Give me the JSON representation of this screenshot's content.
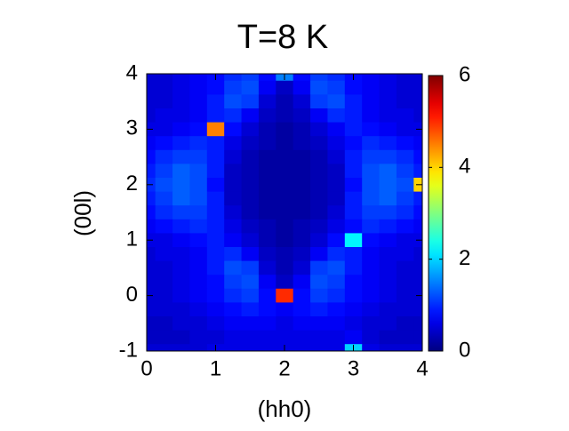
{
  "chart_data": {
    "type": "heatmap",
    "title": "T=8 K",
    "x_label": "(hh0)",
    "y_label": "(00l)",
    "xlim": [
      0,
      4
    ],
    "ylim": [
      -1,
      4
    ],
    "xticks": [
      0,
      1,
      2,
      3,
      4
    ],
    "yticks": [
      -1,
      0,
      1,
      2,
      3,
      4
    ],
    "colormap": "jet",
    "clim": [
      0,
      6
    ],
    "cticks": [
      0,
      2,
      4,
      6
    ],
    "x": [
      0,
      0.25,
      0.5,
      0.75,
      1,
      1.25,
      1.5,
      1.75,
      2,
      2.25,
      2.5,
      2.75,
      3,
      3.25,
      3.5,
      3.75,
      4
    ],
    "y": [
      4,
      3.75,
      3.5,
      3.25,
      3,
      2.75,
      2.5,
      2.25,
      2,
      1.75,
      1.5,
      1.25,
      1,
      0.75,
      0.5,
      0.25,
      0,
      -0.25,
      -0.5,
      -0.75,
      -1
    ],
    "z": [
      [
        0.5,
        0.5,
        0.6,
        0.7,
        0.8,
        1.0,
        1.1,
        0.8,
        1.5,
        0.8,
        1.1,
        1.0,
        0.8,
        0.7,
        0.6,
        0.5,
        0.5
      ],
      [
        0.5,
        0.5,
        0.6,
        0.7,
        0.8,
        1.1,
        1.2,
        0.7,
        0.4,
        0.7,
        1.2,
        1.1,
        0.8,
        0.7,
        0.6,
        0.5,
        0.5
      ],
      [
        0.5,
        0.5,
        0.6,
        0.7,
        0.9,
        1.2,
        1.1,
        0.5,
        0.3,
        0.5,
        1.1,
        1.2,
        0.9,
        0.7,
        0.6,
        0.5,
        0.5
      ],
      [
        0.5,
        0.6,
        0.6,
        0.7,
        0.9,
        1.0,
        0.7,
        0.4,
        0.3,
        0.4,
        0.7,
        1.0,
        0.9,
        0.7,
        0.6,
        0.6,
        0.5
      ],
      [
        0.6,
        0.6,
        0.7,
        0.8,
        4.5,
        0.8,
        0.5,
        0.3,
        0.2,
        0.3,
        0.5,
        0.7,
        0.9,
        0.8,
        0.7,
        0.6,
        0.6
      ],
      [
        0.7,
        0.8,
        0.9,
        1.0,
        0.9,
        0.6,
        0.4,
        0.3,
        0.2,
        0.3,
        0.4,
        0.6,
        0.8,
        1.0,
        0.9,
        0.8,
        0.7
      ],
      [
        0.8,
        1.0,
        1.1,
        1.1,
        0.9,
        0.5,
        0.3,
        0.2,
        0.2,
        0.2,
        0.3,
        0.5,
        0.9,
        1.1,
        1.1,
        1.0,
        0.8
      ],
      [
        0.9,
        1.1,
        1.3,
        1.2,
        0.9,
        0.4,
        0.3,
        0.2,
        0.2,
        0.2,
        0.3,
        0.4,
        0.9,
        1.2,
        1.3,
        1.1,
        0.9
      ],
      [
        1.0,
        1.2,
        1.3,
        1.2,
        0.8,
        0.4,
        0.3,
        0.2,
        0.2,
        0.2,
        0.3,
        0.4,
        0.8,
        1.2,
        1.3,
        1.2,
        4.0
      ],
      [
        0.9,
        1.1,
        1.3,
        1.2,
        0.9,
        0.4,
        0.3,
        0.2,
        0.2,
        0.2,
        0.3,
        0.4,
        0.9,
        1.2,
        1.3,
        1.1,
        0.9
      ],
      [
        0.8,
        1.0,
        1.1,
        1.1,
        0.9,
        0.5,
        0.3,
        0.2,
        0.2,
        0.2,
        0.3,
        0.5,
        0.9,
        1.1,
        1.1,
        1.0,
        0.8
      ],
      [
        0.7,
        0.8,
        0.9,
        1.0,
        0.9,
        0.6,
        0.4,
        0.3,
        0.2,
        0.3,
        0.4,
        0.6,
        0.8,
        1.0,
        0.9,
        0.8,
        0.7
      ],
      [
        0.6,
        0.6,
        0.7,
        0.8,
        0.9,
        0.7,
        0.5,
        0.3,
        0.2,
        0.3,
        0.5,
        0.8,
        2.2,
        0.8,
        0.7,
        0.6,
        0.6
      ],
      [
        0.5,
        0.6,
        0.6,
        0.7,
        0.9,
        1.0,
        0.7,
        0.4,
        0.3,
        0.4,
        0.7,
        1.0,
        0.9,
        0.7,
        0.6,
        0.6,
        0.5
      ],
      [
        0.5,
        0.5,
        0.6,
        0.7,
        0.9,
        1.2,
        1.1,
        0.5,
        0.3,
        0.5,
        1.1,
        1.2,
        0.9,
        0.7,
        0.6,
        0.5,
        0.5
      ],
      [
        0.5,
        0.5,
        0.6,
        0.7,
        0.8,
        1.1,
        1.2,
        0.7,
        0.4,
        0.7,
        1.2,
        1.1,
        0.8,
        0.7,
        0.6,
        0.5,
        0.5
      ],
      [
        0.5,
        0.5,
        0.6,
        0.7,
        0.8,
        1.0,
        1.1,
        0.8,
        5.0,
        0.8,
        1.1,
        1.0,
        0.8,
        0.7,
        0.6,
        0.5,
        0.5
      ],
      [
        0.5,
        0.5,
        0.5,
        0.6,
        0.7,
        0.8,
        0.9,
        0.8,
        0.7,
        0.8,
        0.9,
        0.8,
        0.7,
        0.6,
        0.5,
        0.5,
        0.5
      ],
      [
        0.4,
        0.4,
        0.5,
        0.5,
        0.6,
        0.7,
        0.7,
        0.7,
        0.6,
        0.7,
        0.7,
        0.7,
        0.6,
        0.5,
        0.5,
        0.4,
        0.4
      ],
      [
        0.4,
        0.4,
        0.4,
        0.5,
        0.5,
        0.6,
        0.6,
        0.6,
        0.6,
        0.6,
        0.6,
        0.6,
        0.7,
        0.5,
        0.4,
        0.4,
        0.4
      ],
      [
        0.5,
        0.5,
        0.5,
        0.5,
        0.6,
        0.6,
        0.6,
        0.6,
        0.6,
        0.6,
        0.6,
        0.6,
        2.0,
        0.6,
        0.5,
        0.5,
        0.5
      ]
    ]
  }
}
